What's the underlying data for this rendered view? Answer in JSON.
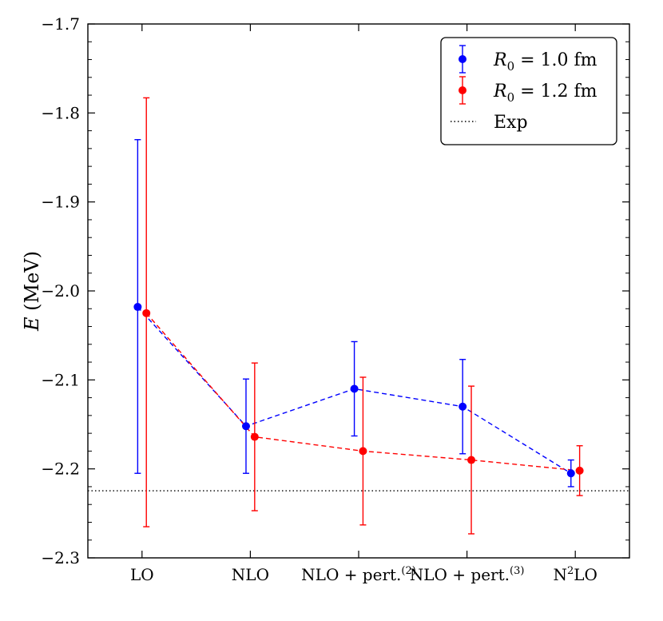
{
  "chart_data": {
    "type": "scatter",
    "title": "",
    "ylabel": "E (MeV)",
    "xlabel": "",
    "categories": [
      "LO",
      "NLO",
      "NLO + pert.(2)",
      "NLO + pert.(3)",
      "N2LO"
    ],
    "category_labels": [
      {
        "base": "LO",
        "sup": "",
        "tail": ""
      },
      {
        "base": "NLO",
        "sup": "",
        "tail": ""
      },
      {
        "base": "NLO + pert.",
        "sup": "(2)",
        "tail": ""
      },
      {
        "base": "NLO + pert.",
        "sup": "(3)",
        "tail": ""
      },
      {
        "base": "N",
        "sup": "2",
        "tail": "LO"
      }
    ],
    "ylim": [
      -2.3,
      -1.7
    ],
    "yticks": [
      -1.7,
      -1.8,
      -1.9,
      -2.0,
      -2.1,
      -2.2,
      -2.3
    ],
    "ytick_labels": [
      "−1.7",
      "−1.8",
      "−1.9",
      "−2.0",
      "−2.1",
      "−2.2",
      "−2.3"
    ],
    "series": [
      {
        "name": "R0 = 1.0 fm",
        "legend_math": {
          "var": "R",
          "sub": "0",
          "rest": " = 1.0 fm"
        },
        "color": "#0000ff",
        "values": [
          -2.018,
          -2.152,
          -2.11,
          -2.13,
          -2.205
        ],
        "err_low": [
          -2.205,
          -2.205,
          -2.163,
          -2.183,
          -2.22
        ],
        "err_high": [
          -1.83,
          -2.099,
          -2.057,
          -2.077,
          -2.19
        ],
        "x_offset": -0.04
      },
      {
        "name": "R0 = 1.2 fm",
        "legend_math": {
          "var": "R",
          "sub": "0",
          "rest": " = 1.2 fm"
        },
        "color": "#ff0000",
        "values": [
          -2.025,
          -2.164,
          -2.18,
          -2.19,
          -2.202
        ],
        "err_low": [
          -2.265,
          -2.247,
          -2.263,
          -2.273,
          -2.23
        ],
        "err_high": [
          -1.783,
          -2.081,
          -2.097,
          -2.107,
          -2.174
        ],
        "x_offset": 0.04
      }
    ],
    "reference_line": {
      "name": "Exp",
      "value": -2.2246,
      "style": "dotted",
      "color": "#000000"
    },
    "legend_position": "upper-right",
    "grid": false
  }
}
